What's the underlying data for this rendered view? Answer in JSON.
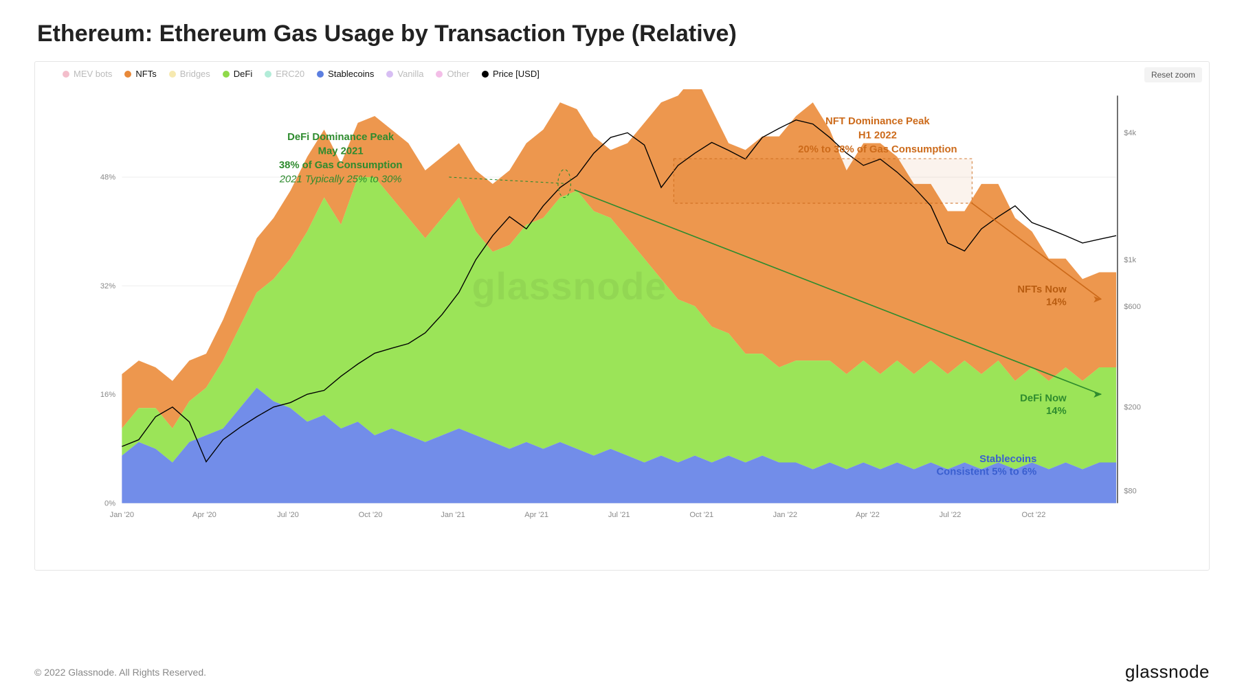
{
  "title": "Ethereum: Ethereum Gas Usage by Transaction Type (Relative)",
  "reset_label": "Reset zoom",
  "copyright": "© 2022 Glassnode. All Rights Reserved.",
  "brand": "glassnode",
  "watermark": "glassnode",
  "legend": [
    {
      "label": "MEV bots",
      "color": "#e05c7e",
      "muted": true
    },
    {
      "label": "NFTs",
      "color": "#e8893a",
      "muted": false
    },
    {
      "label": "Bridges",
      "color": "#e8c83a",
      "muted": true
    },
    {
      "label": "DeFi",
      "color": "#8fd94a",
      "muted": false
    },
    {
      "label": "ERC20",
      "color": "#3fcf9e",
      "muted": true
    },
    {
      "label": "Stablecoins",
      "color": "#5c7fe0",
      "muted": false
    },
    {
      "label": "Vanilla",
      "color": "#9b5ce0",
      "muted": true
    },
    {
      "label": "Other",
      "color": "#e05cc4",
      "muted": true
    },
    {
      "label": "Price [USD]",
      "color": "#000000",
      "muted": false
    }
  ],
  "chart": {
    "type": "stacked-area + line",
    "background_color": "#ffffff",
    "grid_color": "#eeeeee",
    "left_axis": {
      "label": "",
      "ticks": [
        0,
        16,
        32,
        48
      ],
      "tick_labels": [
        "0%",
        "16%",
        "32%",
        "48%"
      ],
      "max": 60
    },
    "right_axis": {
      "label": "",
      "ticks": [
        80,
        200,
        600,
        1000,
        4000
      ],
      "tick_labels": [
        "$80",
        "$200",
        "$600",
        "$1k",
        "$4k"
      ],
      "log": true,
      "min": 70,
      "max": 6000
    },
    "x_axis": {
      "labels": [
        "Jan '20",
        "Apr '20",
        "Jul '20",
        "Oct '20",
        "Jan '21",
        "Apr '21",
        "Jul '21",
        "Oct '21",
        "Jan '22",
        "Apr '22",
        "Jul '22",
        "Oct '22"
      ],
      "positions": [
        0,
        0.083,
        0.167,
        0.25,
        0.333,
        0.417,
        0.5,
        0.583,
        0.667,
        0.75,
        0.833,
        0.917
      ]
    },
    "series": {
      "stablecoins": {
        "color": "#6a87e8",
        "opacity": 0.95,
        "values": [
          7,
          9,
          8,
          6,
          9,
          10,
          11,
          14,
          17,
          15,
          14,
          12,
          13,
          11,
          12,
          10,
          11,
          10,
          9,
          10,
          11,
          10,
          9,
          8,
          9,
          8,
          9,
          8,
          7,
          8,
          7,
          6,
          7,
          6,
          7,
          6,
          7,
          6,
          7,
          6,
          6,
          5,
          6,
          5,
          6,
          5,
          6,
          5,
          6,
          5,
          6,
          5,
          6,
          5,
          6,
          5,
          6,
          5,
          6,
          6
        ]
      },
      "defi": {
        "color": "#96e34f",
        "opacity": 0.95,
        "values": [
          4,
          5,
          6,
          5,
          6,
          7,
          10,
          12,
          14,
          18,
          22,
          28,
          32,
          30,
          36,
          38,
          34,
          32,
          30,
          32,
          34,
          30,
          28,
          30,
          32,
          34,
          36,
          38,
          36,
          34,
          32,
          30,
          26,
          24,
          22,
          20,
          18,
          16,
          15,
          14,
          15,
          16,
          15,
          14,
          15,
          14,
          15,
          14,
          15,
          14,
          15,
          14,
          15,
          13,
          14,
          13,
          14,
          13,
          14,
          14
        ]
      },
      "nfts": {
        "color": "#ec9144",
        "opacity": 0.95,
        "values": [
          8,
          7,
          6,
          7,
          6,
          5,
          6,
          7,
          8,
          9,
          10,
          11,
          10,
          9,
          8,
          9,
          10,
          11,
          10,
          9,
          8,
          9,
          10,
          11,
          12,
          13,
          14,
          12,
          11,
          10,
          14,
          20,
          26,
          30,
          34,
          32,
          28,
          30,
          32,
          34,
          36,
          38,
          34,
          30,
          32,
          34,
          30,
          28,
          26,
          24,
          22,
          28,
          26,
          24,
          20,
          18,
          16,
          15,
          14,
          14
        ]
      },
      "price": {
        "color": "#000000",
        "width": 1.5,
        "log": true,
        "values": [
          130,
          140,
          180,
          200,
          170,
          110,
          140,
          160,
          180,
          200,
          210,
          230,
          240,
          280,
          320,
          360,
          380,
          400,
          450,
          550,
          700,
          1000,
          1300,
          1600,
          1400,
          1800,
          2200,
          2500,
          3200,
          3800,
          4000,
          3500,
          2200,
          2800,
          3200,
          3600,
          3300,
          3000,
          3800,
          4200,
          4600,
          4400,
          3800,
          3200,
          2800,
          3000,
          2600,
          2200,
          1800,
          1200,
          1100,
          1400,
          1600,
          1800,
          1500,
          1400,
          1300,
          1200,
          1250,
          1300
        ]
      }
    },
    "annotations": {
      "defi_peak": {
        "title": "DeFi Dominance Peak",
        "sub1": "May 2021",
        "sub2": "38% of Gas Consumption",
        "sub3": "2021 Typically 25% to 30%",
        "color": "#2e8b2e"
      },
      "nft_peak": {
        "title": "NFT Dominance Peak",
        "sub1": "H1 2022",
        "sub2": "20% to 38% of Gas Consumption",
        "color": "#cc6a1a"
      },
      "nfts_now": {
        "label": "NFTs Now",
        "value": "14%",
        "color": "#b85c10"
      },
      "defi_now": {
        "label": "DeFi Now",
        "value": "14%",
        "color": "#2e8b2e"
      },
      "stable_now": {
        "label": "Stablecoins",
        "value": "Consistent 5% to 6%",
        "color": "#3a5fd0"
      }
    }
  }
}
